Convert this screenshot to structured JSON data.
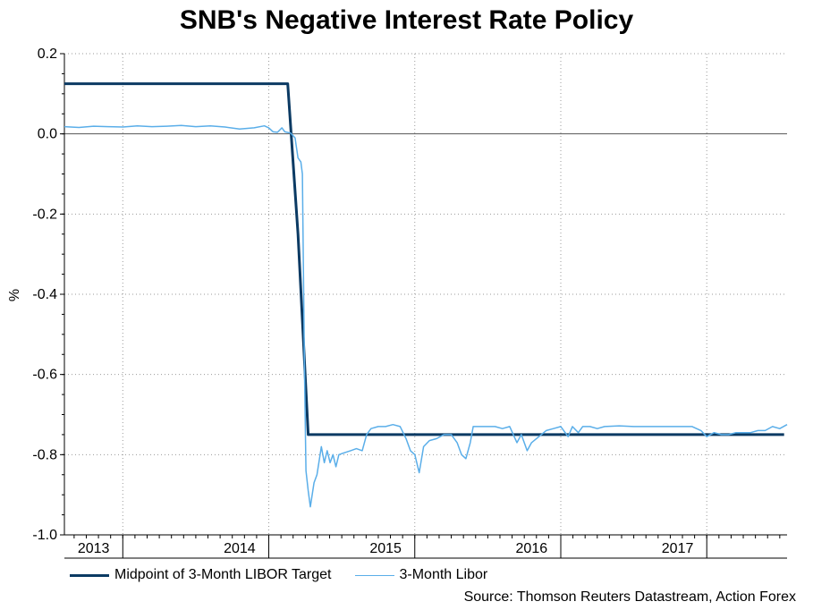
{
  "chart_data": {
    "type": "line",
    "title": "SNB's Negative Interest Rate Policy",
    "ylabel": "%",
    "xlabel": "",
    "ylim": [
      -1.0,
      0.2
    ],
    "yticks": [
      0.2,
      0.0,
      -0.2,
      -0.4,
      -0.6,
      -0.8,
      -1.0
    ],
    "ytick_labels": [
      "0.2",
      "0.0",
      "-0.2",
      "-0.4",
      "-0.6",
      "-0.8",
      "-1.0"
    ],
    "xlim": [
      2012.6,
      2017.55
    ],
    "year_boundaries": [
      2013,
      2014,
      2015,
      2016,
      2017
    ],
    "xtick_labels": [
      {
        "label": "2013",
        "x": 2012.8
      },
      {
        "label": "2014",
        "x": 2013.8
      },
      {
        "label": "2015",
        "x": 2014.8
      },
      {
        "label": "2016",
        "x": 2015.8
      },
      {
        "label": "2017",
        "x": 2016.8
      }
    ],
    "grid": true,
    "zero_line": 0,
    "series": [
      {
        "name": "Midpoint of 3-Month LIBOR Target",
        "color": "#0b3a63",
        "points": [
          [
            2012.6,
            0.125
          ],
          [
            2014.13,
            0.125
          ],
          [
            2014.2,
            -0.25
          ],
          [
            2014.27,
            -0.75
          ],
          [
            2017.53,
            -0.75
          ]
        ]
      },
      {
        "name": "3-Month Libor",
        "color": "#5aaee9",
        "points": [
          [
            2012.6,
            0.018
          ],
          [
            2012.7,
            0.016
          ],
          [
            2012.8,
            0.019
          ],
          [
            2012.9,
            0.018
          ],
          [
            2013.0,
            0.017
          ],
          [
            2013.1,
            0.02
          ],
          [
            2013.2,
            0.018
          ],
          [
            2013.3,
            0.019
          ],
          [
            2013.4,
            0.021
          ],
          [
            2013.5,
            0.018
          ],
          [
            2013.6,
            0.02
          ],
          [
            2013.7,
            0.017
          ],
          [
            2013.8,
            0.012
          ],
          [
            2013.9,
            0.015
          ],
          [
            2013.97,
            0.02
          ],
          [
            2014.0,
            0.015
          ],
          [
            2014.03,
            0.005
          ],
          [
            2014.06,
            0.004
          ],
          [
            2014.09,
            0.015
          ],
          [
            2014.11,
            0.005
          ],
          [
            2014.15,
            0.002
          ],
          [
            2014.18,
            -0.01
          ],
          [
            2014.2,
            -0.06
          ],
          [
            2014.22,
            -0.07
          ],
          [
            2014.23,
            -0.1
          ],
          [
            2014.245,
            -0.6
          ],
          [
            2014.255,
            -0.84
          ],
          [
            2014.27,
            -0.89
          ],
          [
            2014.285,
            -0.93
          ],
          [
            2014.31,
            -0.87
          ],
          [
            2014.33,
            -0.85
          ],
          [
            2014.36,
            -0.78
          ],
          [
            2014.38,
            -0.82
          ],
          [
            2014.4,
            -0.79
          ],
          [
            2014.42,
            -0.82
          ],
          [
            2014.44,
            -0.8
          ],
          [
            2014.46,
            -0.83
          ],
          [
            2014.48,
            -0.8
          ],
          [
            2014.52,
            -0.795
          ],
          [
            2014.56,
            -0.79
          ],
          [
            2014.6,
            -0.785
          ],
          [
            2014.64,
            -0.79
          ],
          [
            2014.67,
            -0.75
          ],
          [
            2014.7,
            -0.735
          ],
          [
            2014.75,
            -0.73
          ],
          [
            2014.8,
            -0.73
          ],
          [
            2014.85,
            -0.725
          ],
          [
            2014.9,
            -0.73
          ],
          [
            2014.94,
            -0.76
          ],
          [
            2014.97,
            -0.79
          ],
          [
            2015.0,
            -0.8
          ],
          [
            2015.03,
            -0.845
          ],
          [
            2015.06,
            -0.78
          ],
          [
            2015.1,
            -0.765
          ],
          [
            2015.15,
            -0.76
          ],
          [
            2015.2,
            -0.75
          ],
          [
            2015.25,
            -0.75
          ],
          [
            2015.29,
            -0.77
          ],
          [
            2015.32,
            -0.8
          ],
          [
            2015.35,
            -0.81
          ],
          [
            2015.38,
            -0.77
          ],
          [
            2015.4,
            -0.73
          ],
          [
            2015.45,
            -0.73
          ],
          [
            2015.5,
            -0.73
          ],
          [
            2015.55,
            -0.73
          ],
          [
            2015.6,
            -0.735
          ],
          [
            2015.65,
            -0.73
          ],
          [
            2015.7,
            -0.77
          ],
          [
            2015.73,
            -0.75
          ],
          [
            2015.77,
            -0.79
          ],
          [
            2015.8,
            -0.77
          ],
          [
            2015.85,
            -0.755
          ],
          [
            2015.9,
            -0.74
          ],
          [
            2015.95,
            -0.735
          ],
          [
            2016.0,
            -0.73
          ],
          [
            2016.05,
            -0.755
          ],
          [
            2016.08,
            -0.73
          ],
          [
            2016.12,
            -0.745
          ],
          [
            2016.15,
            -0.73
          ],
          [
            2016.2,
            -0.73
          ],
          [
            2016.25,
            -0.735
          ],
          [
            2016.3,
            -0.73
          ],
          [
            2016.4,
            -0.728
          ],
          [
            2016.5,
            -0.73
          ],
          [
            2016.6,
            -0.73
          ],
          [
            2016.7,
            -0.73
          ],
          [
            2016.8,
            -0.73
          ],
          [
            2016.9,
            -0.73
          ],
          [
            2016.96,
            -0.74
          ],
          [
            2017.0,
            -0.755
          ],
          [
            2017.05,
            -0.745
          ],
          [
            2017.1,
            -0.75
          ],
          [
            2017.15,
            -0.75
          ],
          [
            2017.2,
            -0.745
          ],
          [
            2017.25,
            -0.745
          ],
          [
            2017.3,
            -0.745
          ],
          [
            2017.35,
            -0.74
          ],
          [
            2017.4,
            -0.74
          ],
          [
            2017.45,
            -0.73
          ],
          [
            2017.5,
            -0.735
          ],
          [
            2017.55,
            -0.725
          ]
        ]
      }
    ],
    "legend": {
      "position": "bottom-left",
      "entries": [
        "Midpoint of 3-Month LIBOR Target",
        "3-Month Libor"
      ]
    },
    "source": "Source: Thomson Reuters Datastream, Action Forex"
  }
}
